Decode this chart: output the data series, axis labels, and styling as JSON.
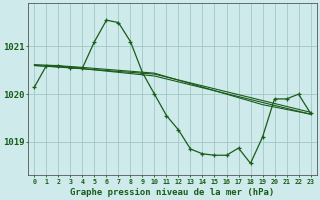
{
  "title": "Graphe pression niveau de la mer (hPa)",
  "background_color": "#ceeaea",
  "grid_color": "#a8cccc",
  "line_color": "#1a5c1a",
  "xlim": [
    -0.5,
    23.5
  ],
  "ylim": [
    1018.3,
    1021.9
  ],
  "yticks": [
    1019,
    1020,
    1021
  ],
  "xticks": [
    0,
    1,
    2,
    3,
    4,
    5,
    6,
    7,
    8,
    9,
    10,
    11,
    12,
    13,
    14,
    15,
    16,
    17,
    18,
    19,
    20,
    21,
    22,
    23
  ],
  "series1_x": [
    0,
    1,
    2,
    3,
    4,
    5,
    6,
    7,
    8,
    9,
    10,
    11,
    12,
    13,
    14,
    15,
    16,
    17,
    18,
    19,
    20,
    21,
    22,
    23
  ],
  "series1_y": [
    1020.15,
    1020.6,
    1020.6,
    1020.55,
    1020.55,
    1021.1,
    1021.55,
    1021.5,
    1021.1,
    1020.45,
    1020.0,
    1019.55,
    1019.25,
    1018.85,
    1018.75,
    1018.72,
    1018.72,
    1018.87,
    1018.55,
    1019.1,
    1019.9,
    1019.9,
    1020.0,
    1019.6
  ],
  "series2_x": [
    0,
    3,
    10,
    23
  ],
  "series2_y": [
    1020.6,
    1020.55,
    1020.42,
    1019.62
  ],
  "series3_x": [
    0,
    3,
    10,
    23
  ],
  "series3_y": [
    1020.6,
    1020.56,
    1020.38,
    1019.58
  ],
  "series4_x": [
    0,
    3,
    10,
    19,
    23
  ],
  "series4_y": [
    1020.62,
    1020.58,
    1020.44,
    1019.78,
    1019.58
  ]
}
